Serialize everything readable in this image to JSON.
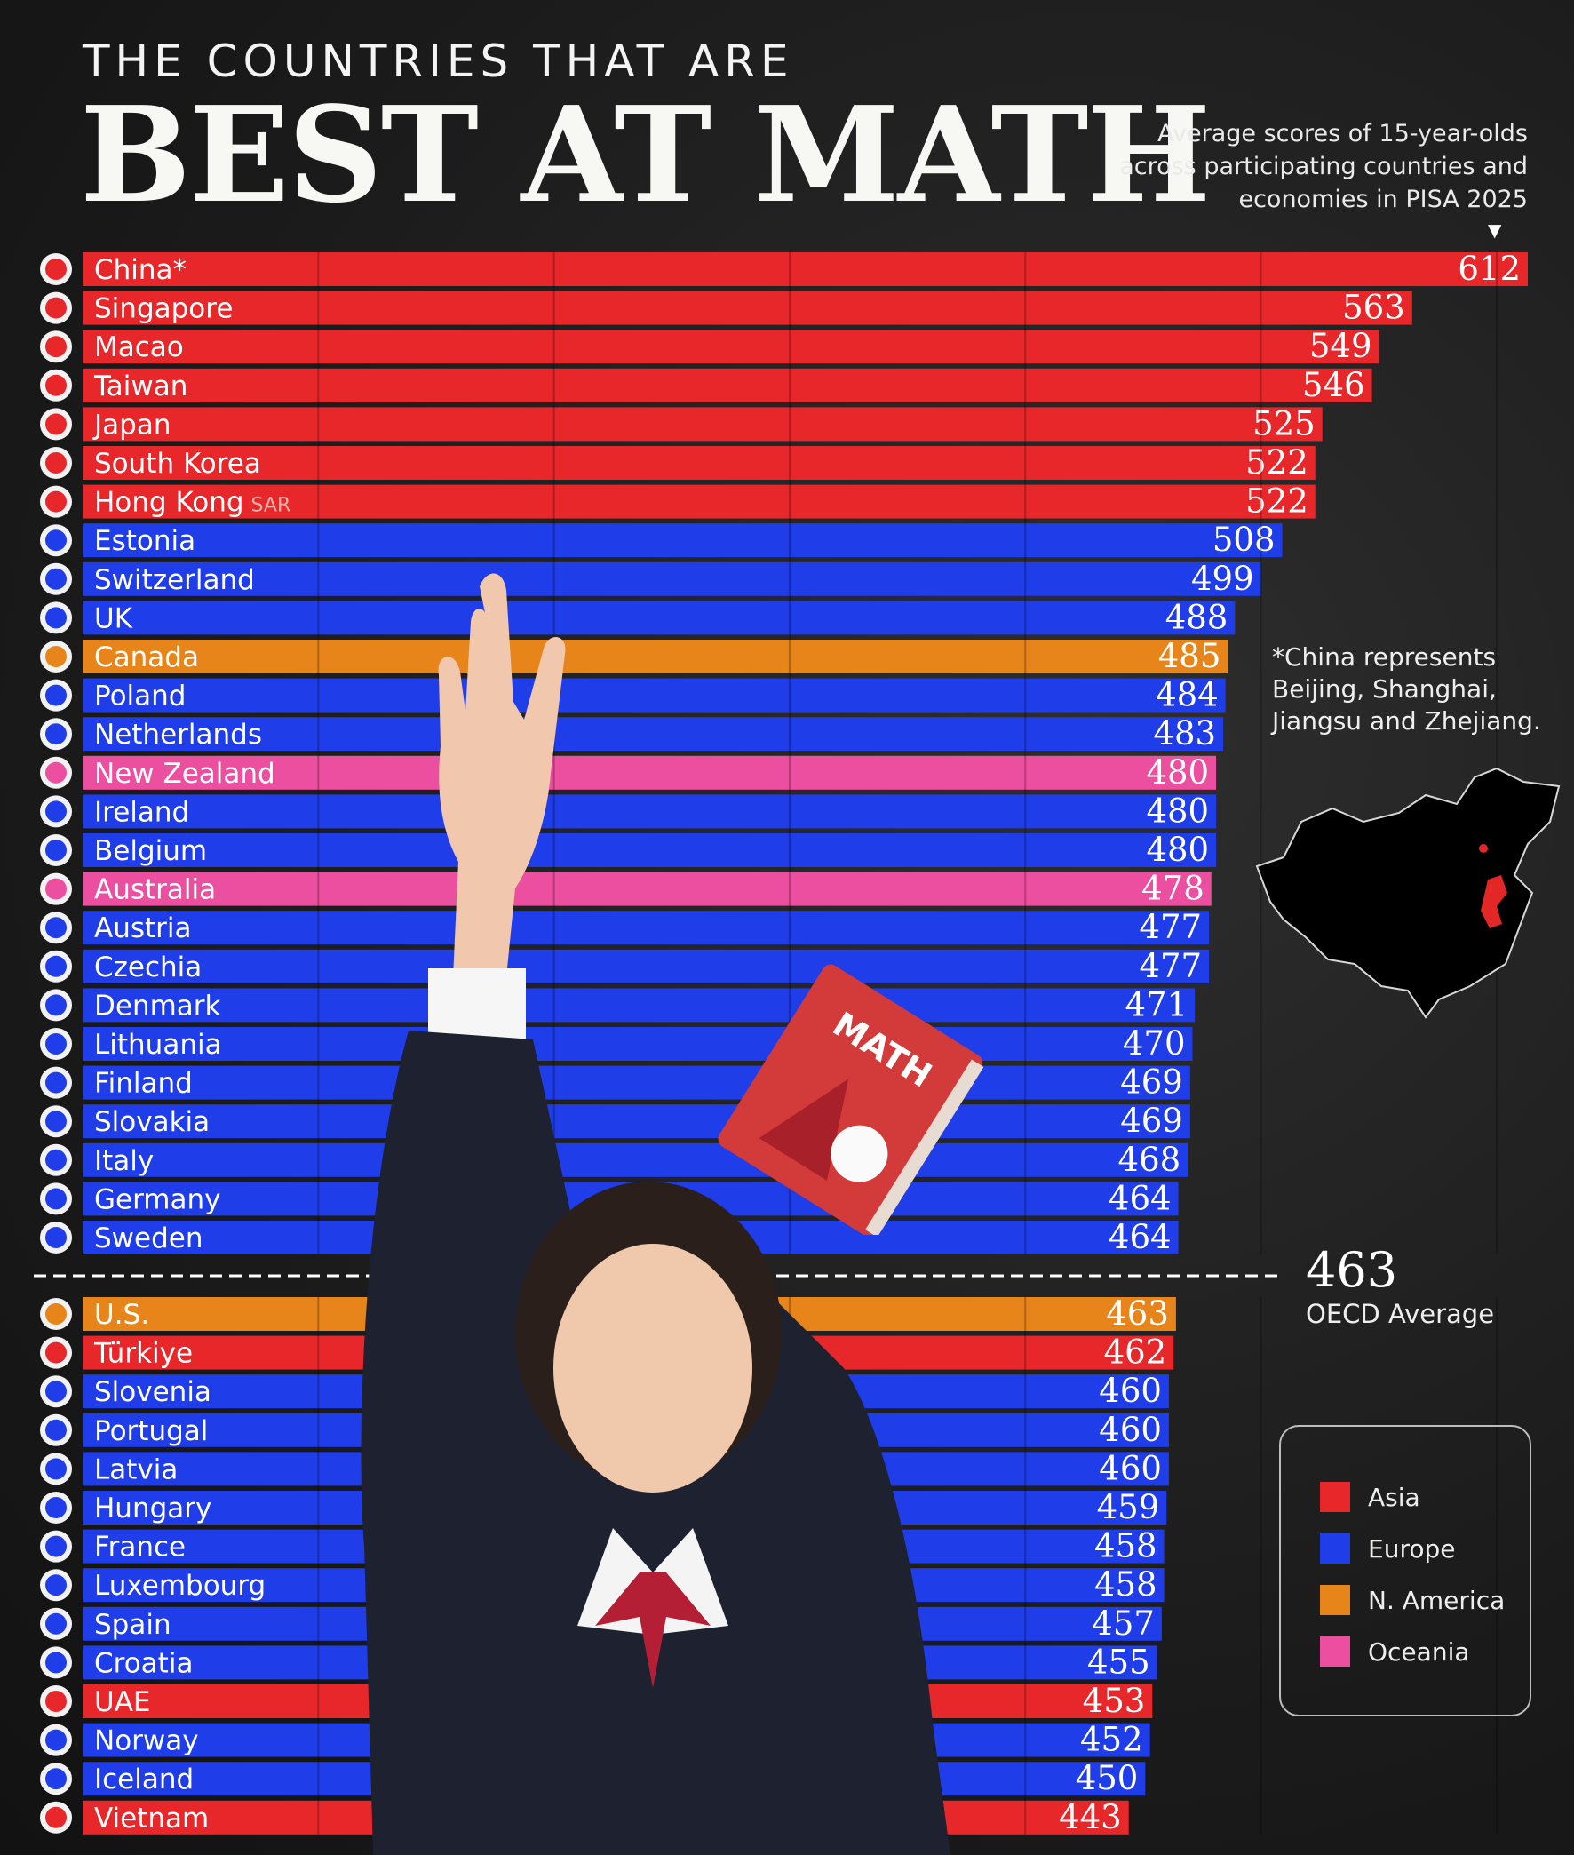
{
  "header": {
    "kicker": "THE COUNTRIES THAT ARE",
    "title": "BEST AT MATH",
    "subtitle": "Average scores of 15-year-olds across participating countries and economies in PISA 2025"
  },
  "footnote": "*China represents Beijing, Shanghai, Jiangsu and Zhejiang.",
  "oecd": {
    "value": "463",
    "label": "OECD Average"
  },
  "legend": [
    {
      "label": "Asia",
      "color": "#e8272b"
    },
    {
      "label": "Europe",
      "color": "#1f3de8"
    },
    {
      "label": "N. America",
      "color": "#e7851a"
    },
    {
      "label": "Oceania",
      "color": "#ec4f9f"
    }
  ],
  "book_label": "MATH",
  "chart_data": {
    "type": "bar",
    "orientation": "horizontal",
    "title": "BEST AT MATH",
    "reference_line": {
      "value": 463,
      "label": "OECD Average"
    },
    "grid": true,
    "legend_position": "right",
    "items": [
      {
        "name": "China*",
        "value": 612,
        "region": "Asia"
      },
      {
        "name": "Singapore",
        "value": 563,
        "region": "Asia"
      },
      {
        "name": "Macao",
        "value": 549,
        "region": "Asia"
      },
      {
        "name": "Taiwan",
        "value": 546,
        "region": "Asia"
      },
      {
        "name": "Japan",
        "value": 525,
        "region": "Asia"
      },
      {
        "name": "South Korea",
        "value": 522,
        "region": "Asia"
      },
      {
        "name": "Hong Kong",
        "suffix": "SAR",
        "value": 522,
        "region": "Asia"
      },
      {
        "name": "Estonia",
        "value": 508,
        "region": "Europe"
      },
      {
        "name": "Switzerland",
        "value": 499,
        "region": "Europe"
      },
      {
        "name": "UK",
        "value": 488,
        "region": "Europe"
      },
      {
        "name": "Canada",
        "value": 485,
        "region": "N. America"
      },
      {
        "name": "Poland",
        "value": 484,
        "region": "Europe"
      },
      {
        "name": "Netherlands",
        "value": 483,
        "region": "Europe"
      },
      {
        "name": "New Zealand",
        "value": 480,
        "region": "Oceania"
      },
      {
        "name": "Ireland",
        "value": 480,
        "region": "Europe"
      },
      {
        "name": "Belgium",
        "value": 480,
        "region": "Europe"
      },
      {
        "name": "Australia",
        "value": 478,
        "region": "Oceania"
      },
      {
        "name": "Austria",
        "value": 477,
        "region": "Europe"
      },
      {
        "name": "Czechia",
        "value": 477,
        "region": "Europe"
      },
      {
        "name": "Denmark",
        "value": 471,
        "region": "Europe"
      },
      {
        "name": "Lithuania",
        "value": 470,
        "region": "Europe"
      },
      {
        "name": "Finland",
        "value": 469,
        "region": "Europe"
      },
      {
        "name": "Slovakia",
        "value": 469,
        "region": "Europe"
      },
      {
        "name": "Italy",
        "value": 468,
        "region": "Europe"
      },
      {
        "name": "Germany",
        "value": 464,
        "region": "Europe"
      },
      {
        "name": "Sweden",
        "value": 464,
        "region": "Europe"
      },
      {
        "name": "U.S.",
        "value": 463,
        "region": "N. America"
      },
      {
        "name": "Türkiye",
        "value": 462,
        "region": "Asia"
      },
      {
        "name": "Slovenia",
        "value": 460,
        "region": "Europe"
      },
      {
        "name": "Portugal",
        "value": 460,
        "region": "Europe"
      },
      {
        "name": "Latvia",
        "value": 460,
        "region": "Europe"
      },
      {
        "name": "Hungary",
        "value": 459,
        "region": "Europe"
      },
      {
        "name": "France",
        "value": 458,
        "region": "Europe"
      },
      {
        "name": "Luxembourg",
        "value": 458,
        "region": "Europe"
      },
      {
        "name": "Spain",
        "value": 457,
        "region": "Europe"
      },
      {
        "name": "Croatia",
        "value": 455,
        "region": "Europe"
      },
      {
        "name": "UAE",
        "value": 453,
        "region": "Asia"
      },
      {
        "name": "Norway",
        "value": 452,
        "region": "Europe"
      },
      {
        "name": "Iceland",
        "value": 450,
        "region": "Europe"
      },
      {
        "name": "Vietnam",
        "value": 443,
        "region": "Asia"
      }
    ]
  }
}
